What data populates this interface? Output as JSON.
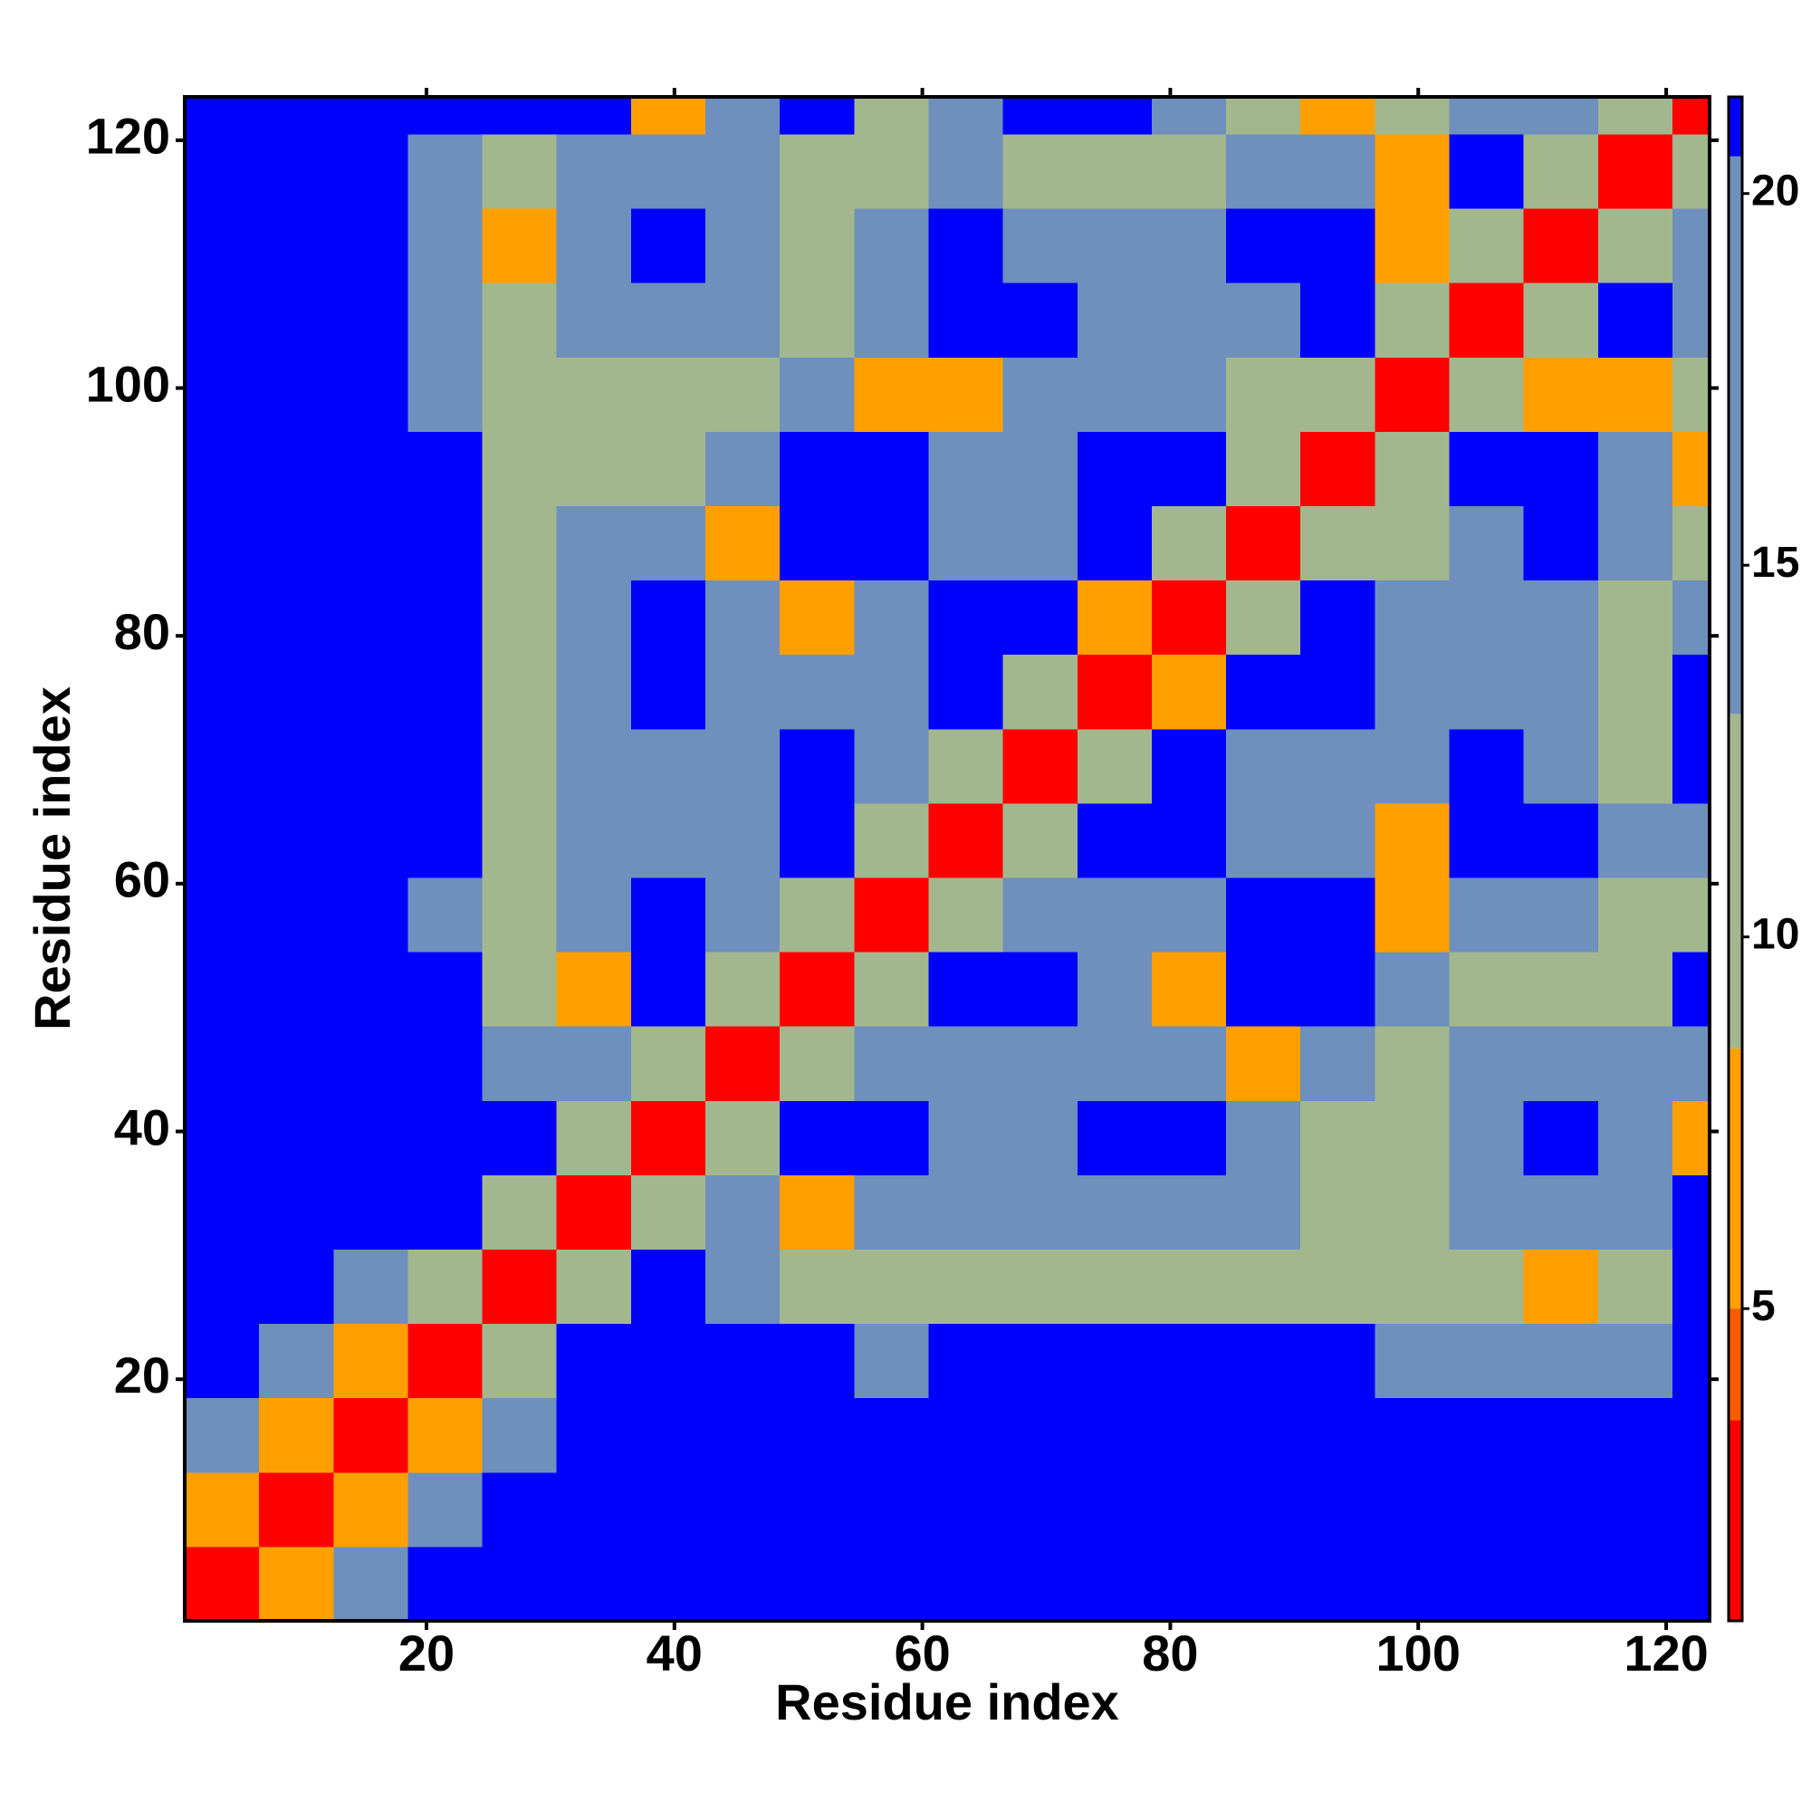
{
  "chart_data": {
    "type": "heatmap",
    "x_label": "Residue index",
    "y_label": "Residue index",
    "xlim": [
      0.5,
      123.5
    ],
    "ylim": [
      0.5,
      123.5
    ],
    "xticks": [
      20,
      40,
      60,
      80,
      100,
      120
    ],
    "yticks": [
      20,
      40,
      60,
      80,
      100,
      120
    ],
    "xbins": [
      0.5,
      6.5,
      12.5,
      18.5,
      24.5,
      30.5,
      36.5,
      42.5,
      48.5,
      54.5,
      60.5,
      66.5,
      72.5,
      78.5,
      84.5,
      90.5,
      96.5,
      102.5,
      108.5,
      114.5,
      120.5,
      123.5
    ],
    "ybins": [
      0.5,
      6.5,
      12.5,
      18.5,
      24.5,
      30.5,
      36.5,
      42.5,
      48.5,
      54.5,
      60.5,
      66.5,
      72.5,
      78.5,
      84.5,
      90.5,
      96.5,
      102.5,
      108.5,
      114.5,
      120.5,
      123.5
    ],
    "z": [
      [
        2,
        7,
        15,
        21,
        21,
        21,
        21,
        21,
        21,
        21,
        21,
        21,
        21,
        21,
        21,
        21,
        21,
        21,
        21,
        21,
        21
      ],
      [
        7,
        2,
        7,
        15,
        21,
        21,
        21,
        21,
        21,
        21,
        21,
        21,
        21,
        21,
        21,
        21,
        21,
        21,
        21,
        21,
        21
      ],
      [
        15,
        7,
        2,
        7,
        15,
        21,
        21,
        21,
        21,
        21,
        21,
        21,
        21,
        21,
        21,
        21,
        21,
        21,
        21,
        21,
        21
      ],
      [
        21,
        15,
        7,
        2,
        11,
        21,
        21,
        21,
        21,
        15,
        21,
        21,
        21,
        21,
        21,
        21,
        15,
        15,
        15,
        15,
        21
      ],
      [
        21,
        21,
        15,
        11,
        2,
        11,
        21,
        15,
        11,
        11,
        11,
        11,
        11,
        11,
        11,
        11,
        11,
        11,
        7,
        11,
        21
      ],
      [
        21,
        21,
        21,
        21,
        11,
        2,
        11,
        15,
        7,
        15,
        15,
        15,
        15,
        15,
        15,
        11,
        11,
        15,
        15,
        15,
        21
      ],
      [
        21,
        21,
        21,
        21,
        21,
        11,
        2,
        11,
        21,
        21,
        15,
        15,
        21,
        21,
        15,
        11,
        11,
        15,
        21,
        15,
        7
      ],
      [
        21,
        21,
        21,
        21,
        15,
        15,
        11,
        2,
        11,
        15,
        15,
        15,
        15,
        15,
        7,
        15,
        11,
        15,
        15,
        15,
        15
      ],
      [
        21,
        21,
        21,
        21,
        11,
        7,
        21,
        11,
        2,
        11,
        21,
        21,
        15,
        7,
        21,
        21,
        15,
        11,
        11,
        11,
        21
      ],
      [
        21,
        21,
        21,
        15,
        11,
        15,
        21,
        15,
        11,
        2,
        11,
        15,
        15,
        15,
        21,
        21,
        7,
        15,
        15,
        11,
        11
      ],
      [
        21,
        21,
        21,
        21,
        11,
        15,
        15,
        15,
        21,
        11,
        2,
        11,
        21,
        21,
        15,
        15,
        7,
        21,
        21,
        15,
        15
      ],
      [
        21,
        21,
        21,
        21,
        11,
        15,
        15,
        15,
        21,
        15,
        11,
        2,
        11,
        21,
        15,
        15,
        15,
        21,
        15,
        11,
        21
      ],
      [
        21,
        21,
        21,
        21,
        11,
        15,
        21,
        15,
        15,
        15,
        21,
        11,
        2,
        7,
        21,
        21,
        15,
        15,
        15,
        11,
        21
      ],
      [
        21,
        21,
        21,
        21,
        11,
        15,
        21,
        15,
        7,
        15,
        21,
        21,
        7,
        2,
        11,
        21,
        15,
        15,
        15,
        11,
        15
      ],
      [
        21,
        21,
        21,
        21,
        11,
        15,
        15,
        7,
        21,
        21,
        15,
        15,
        21,
        11,
        2,
        11,
        11,
        15,
        21,
        15,
        11
      ],
      [
        21,
        21,
        21,
        21,
        11,
        11,
        11,
        15,
        21,
        21,
        15,
        15,
        21,
        21,
        11,
        2,
        11,
        21,
        21,
        15,
        7
      ],
      [
        21,
        21,
        21,
        15,
        11,
        11,
        11,
        11,
        15,
        7,
        7,
        15,
        15,
        15,
        11,
        11,
        2,
        11,
        7,
        7,
        11
      ],
      [
        21,
        21,
        21,
        15,
        11,
        15,
        15,
        15,
        11,
        15,
        21,
        21,
        15,
        15,
        15,
        21,
        11,
        2,
        11,
        21,
        15
      ],
      [
        21,
        21,
        21,
        15,
        7,
        15,
        21,
        15,
        11,
        15,
        21,
        15,
        15,
        15,
        21,
        21,
        7,
        11,
        2,
        11,
        15
      ],
      [
        21,
        21,
        21,
        15,
        11,
        15,
        15,
        15,
        11,
        11,
        15,
        11,
        11,
        11,
        15,
        15,
        7,
        21,
        11,
        2,
        11
      ],
      [
        21,
        21,
        21,
        21,
        21,
        21,
        7,
        15,
        21,
        11,
        15,
        21,
        21,
        15,
        11,
        7,
        11,
        15,
        15,
        11,
        2
      ]
    ],
    "colorbar": {
      "lim": [
        0.8,
        21.3
      ],
      "ticks": [
        5,
        10,
        15,
        20
      ],
      "bands": [
        {
          "to": 3.5,
          "color": "#ff0000"
        },
        {
          "to": 5,
          "color": "#ff5a00"
        },
        {
          "to": 8.5,
          "color": "#ffa000"
        },
        {
          "to": 13,
          "color": "#a3b78e"
        },
        {
          "to": 20.5,
          "color": "#6f8fbd"
        },
        {
          "to": 21.3,
          "color": "#0000ff"
        }
      ]
    }
  }
}
